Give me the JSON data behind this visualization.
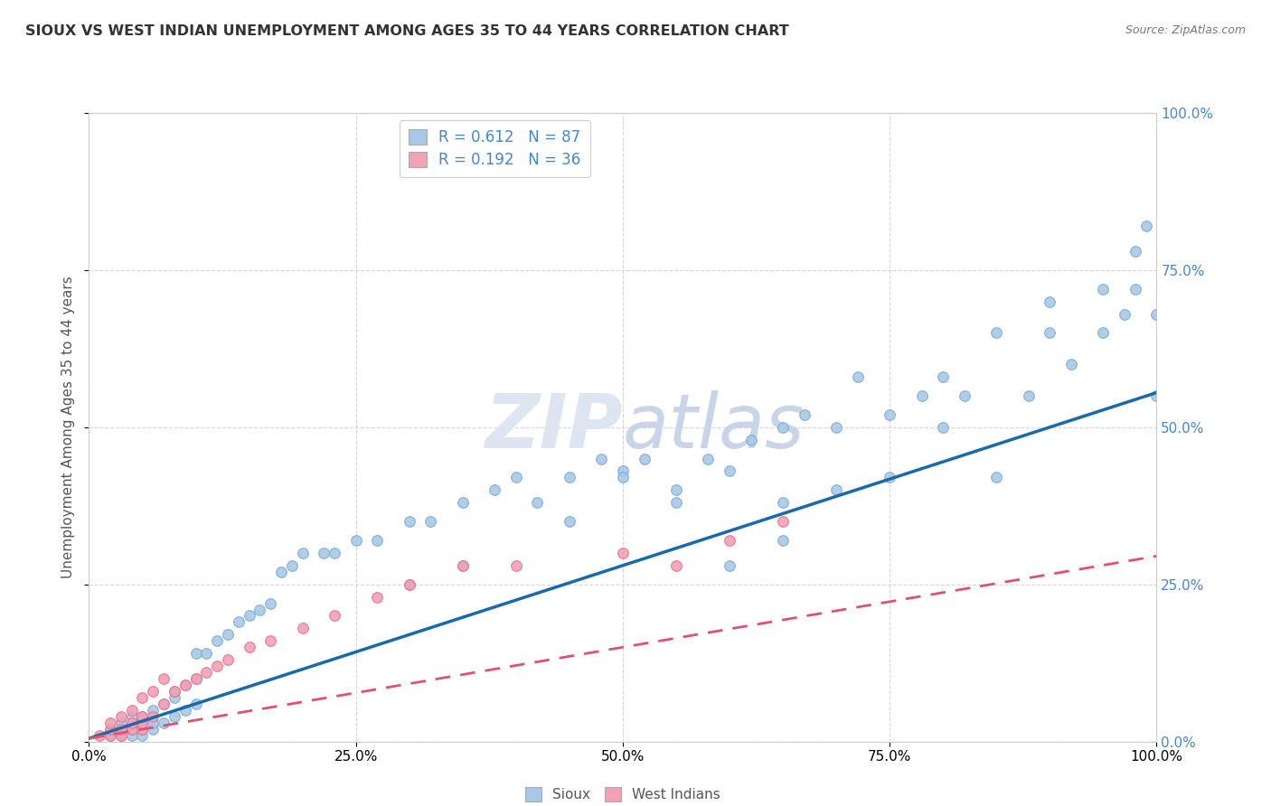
{
  "title": "SIOUX VS WEST INDIAN UNEMPLOYMENT AMONG AGES 35 TO 44 YEARS CORRELATION CHART",
  "source": "Source: ZipAtlas.com",
  "ylabel": "Unemployment Among Ages 35 to 44 years",
  "xlim": [
    0.0,
    1.0
  ],
  "ylim": [
    0.0,
    1.0
  ],
  "tick_values": [
    0.0,
    0.25,
    0.5,
    0.75,
    1.0
  ],
  "tick_labels": [
    "0.0%",
    "25.0%",
    "50.0%",
    "75.0%",
    "100.0%"
  ],
  "watermark_zip": "ZIP",
  "watermark_atlas": "atlas",
  "sioux_color": "#a8c8e8",
  "sioux_edge_color": "#7aabce",
  "west_indian_color": "#f4a0b5",
  "west_indian_edge_color": "#e8708a",
  "sioux_line_color": "#1a6aaa",
  "west_indian_line_color": "#e05070",
  "sioux_trend_x": [
    0.0,
    1.0
  ],
  "sioux_trend_y": [
    0.005,
    0.555
  ],
  "west_indian_trend_x": [
    0.0,
    1.0
  ],
  "west_indian_trend_y": [
    0.005,
    0.295
  ],
  "background_color": "#ffffff",
  "grid_color": "#cccccc",
  "title_color": "#333333",
  "source_color": "#777777",
  "ytick_right_color": "#4488cc",
  "title_fontsize": 11.5,
  "tick_fontsize": 11,
  "ylabel_fontsize": 11,
  "watermark_zip_fontsize": 60,
  "watermark_atlas_fontsize": 60,
  "watermark_color": "#dde5f0",
  "legend_sioux_color": "#a8c8e8",
  "legend_wi_color": "#f4a0b5",
  "legend_r_color": "#4488cc",
  "legend_n_color": "#4488cc",
  "sioux_scatter_x": [
    0.02,
    0.02,
    0.03,
    0.03,
    0.03,
    0.04,
    0.04,
    0.04,
    0.04,
    0.05,
    0.05,
    0.05,
    0.05,
    0.06,
    0.06,
    0.06,
    0.07,
    0.07,
    0.08,
    0.08,
    0.08,
    0.09,
    0.09,
    0.1,
    0.1,
    0.1,
    0.11,
    0.12,
    0.13,
    0.14,
    0.15,
    0.16,
    0.17,
    0.18,
    0.19,
    0.2,
    0.22,
    0.23,
    0.25,
    0.27,
    0.3,
    0.32,
    0.35,
    0.38,
    0.4,
    0.42,
    0.45,
    0.48,
    0.5,
    0.52,
    0.55,
    0.58,
    0.6,
    0.62,
    0.65,
    0.65,
    0.67,
    0.7,
    0.7,
    0.72,
    0.75,
    0.78,
    0.8,
    0.8,
    0.82,
    0.85,
    0.85,
    0.88,
    0.9,
    0.9,
    0.92,
    0.95,
    0.95,
    0.97,
    0.98,
    0.98,
    0.99,
    1.0,
    1.0,
    0.6,
    0.65,
    0.5,
    0.55,
    0.45,
    0.35,
    0.3,
    0.75
  ],
  "sioux_scatter_y": [
    0.01,
    0.02,
    0.01,
    0.02,
    0.03,
    0.01,
    0.02,
    0.03,
    0.04,
    0.01,
    0.02,
    0.03,
    0.04,
    0.02,
    0.03,
    0.05,
    0.03,
    0.06,
    0.04,
    0.07,
    0.08,
    0.05,
    0.09,
    0.06,
    0.1,
    0.14,
    0.14,
    0.16,
    0.17,
    0.19,
    0.2,
    0.21,
    0.22,
    0.27,
    0.28,
    0.3,
    0.3,
    0.3,
    0.32,
    0.32,
    0.35,
    0.35,
    0.38,
    0.4,
    0.42,
    0.38,
    0.42,
    0.45,
    0.43,
    0.45,
    0.4,
    0.45,
    0.43,
    0.48,
    0.38,
    0.5,
    0.52,
    0.4,
    0.5,
    0.58,
    0.52,
    0.55,
    0.5,
    0.58,
    0.55,
    0.42,
    0.65,
    0.55,
    0.65,
    0.7,
    0.6,
    0.65,
    0.72,
    0.68,
    0.72,
    0.78,
    0.82,
    0.55,
    0.68,
    0.28,
    0.32,
    0.42,
    0.38,
    0.35,
    0.28,
    0.25,
    0.42
  ],
  "west_indian_scatter_x": [
    0.01,
    0.02,
    0.02,
    0.02,
    0.03,
    0.03,
    0.03,
    0.04,
    0.04,
    0.04,
    0.05,
    0.05,
    0.05,
    0.05,
    0.06,
    0.06,
    0.07,
    0.07,
    0.08,
    0.09,
    0.1,
    0.11,
    0.12,
    0.13,
    0.15,
    0.17,
    0.2,
    0.23,
    0.27,
    0.3,
    0.35,
    0.4,
    0.5,
    0.55,
    0.6,
    0.65
  ],
  "west_indian_scatter_y": [
    0.01,
    0.01,
    0.02,
    0.03,
    0.01,
    0.02,
    0.04,
    0.02,
    0.03,
    0.05,
    0.02,
    0.03,
    0.04,
    0.07,
    0.04,
    0.08,
    0.06,
    0.1,
    0.08,
    0.09,
    0.1,
    0.11,
    0.12,
    0.13,
    0.15,
    0.16,
    0.18,
    0.2,
    0.23,
    0.25,
    0.28,
    0.28,
    0.3,
    0.28,
    0.32,
    0.35
  ]
}
